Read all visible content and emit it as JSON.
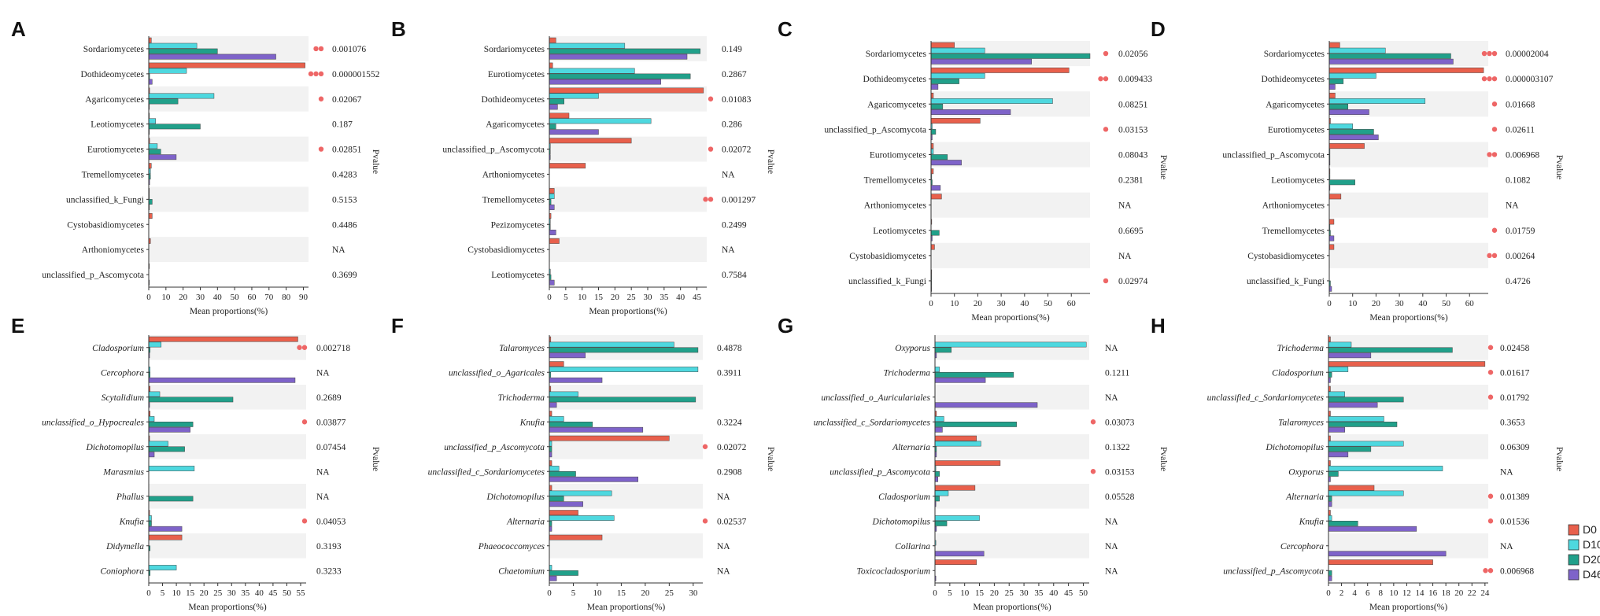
{
  "colors": {
    "D0": "#E8604C",
    "D100": "#4ED8DF",
    "D200": "#21A08A",
    "D460": "#7E63C9",
    "band": "#F2F2F2",
    "star": "#EE6666"
  },
  "legend": [
    "D0",
    "D100",
    "D200",
    "D460"
  ],
  "chart_data": [
    {
      "panel": "A",
      "type": "bar",
      "orientation": "horizontal",
      "italic": false,
      "xlabel": "Mean proportions(%)",
      "ylabel": "Pvalue",
      "xlim": [
        0,
        93
      ],
      "xticks": [
        0,
        10,
        20,
        30,
        40,
        50,
        60,
        70,
        80,
        90
      ],
      "categories": [
        "Sordariomycetes",
        "Dothideomycetes",
        "Agaricomycetes",
        "Leotiomycetes",
        "Eurotiomycetes",
        "Tremellomycetes",
        "unclassified_k_Fungi",
        "Cystobasidiomycetes",
        "Arthoniomycetes",
        "unclassified_p_Ascomycota"
      ],
      "pvalues": [
        "0.001076",
        "0.000001552",
        "0.02067",
        "0.187",
        "0.02851",
        "0.4283",
        "0.5153",
        "0.4486",
        "NA",
        "0.3699"
      ],
      "sig": [
        2,
        3,
        1,
        0,
        1,
        0,
        0,
        0,
        0,
        0
      ],
      "series": [
        {
          "name": "D0",
          "values": [
            1.5,
            91,
            0.5,
            0.3,
            0.5,
            1.5,
            0.3,
            2,
            1,
            0.2
          ]
        },
        {
          "name": "D100",
          "values": [
            28,
            22,
            38,
            4,
            5,
            1,
            0.3,
            0,
            0,
            0
          ]
        },
        {
          "name": "D200",
          "values": [
            40,
            0.5,
            17,
            30,
            7,
            1,
            2,
            0,
            0,
            0
          ]
        },
        {
          "name": "D460",
          "values": [
            74,
            2,
            0.3,
            0.3,
            16,
            0.5,
            0.3,
            0,
            0,
            0.3
          ]
        }
      ]
    },
    {
      "panel": "B",
      "type": "bar",
      "orientation": "horizontal",
      "italic": false,
      "xlabel": "Mean proportions(%)",
      "ylabel": "Pvalue",
      "xlim": [
        0,
        48
      ],
      "xticks": [
        0,
        5,
        10,
        15,
        20,
        25,
        30,
        35,
        40,
        45
      ],
      "categories": [
        "Sordariomycetes",
        "Eurotiomycetes",
        "Dothideomycetes",
        "Agaricomycetes",
        "unclassified_p_Ascomycota",
        "Arthoniomycetes",
        "Tremellomycetes",
        "Pezizomycetes",
        "Cystobasidiomycetes",
        "Leotiomycetes"
      ],
      "pvalues": [
        "0.149",
        "0.2867",
        "0.01083",
        "0.286",
        "0.02072",
        "NA",
        "0.001297",
        "0.2499",
        "NA",
        "0.7584"
      ],
      "sig": [
        0,
        0,
        1,
        0,
        1,
        0,
        2,
        0,
        0,
        0
      ],
      "series": [
        {
          "name": "D0",
          "values": [
            2,
            1,
            47,
            6,
            25,
            11,
            1.5,
            0.5,
            3,
            0
          ]
        },
        {
          "name": "D100",
          "values": [
            23,
            26,
            15,
            31,
            0.3,
            0,
            1.5,
            0.3,
            0,
            0.3
          ]
        },
        {
          "name": "D200",
          "values": [
            46,
            43,
            4.5,
            2,
            0.3,
            0,
            0.5,
            0.3,
            0,
            0.5
          ]
        },
        {
          "name": "D460",
          "values": [
            42,
            34,
            2.5,
            15,
            0.3,
            0,
            1.5,
            2,
            0,
            1.5
          ]
        }
      ]
    },
    {
      "panel": "C",
      "type": "bar",
      "orientation": "horizontal",
      "italic": false,
      "xlabel": "Mean proportions(%)",
      "ylabel": "Pvalue",
      "xlim": [
        0,
        68
      ],
      "xticks": [
        0,
        10,
        20,
        30,
        40,
        50,
        60
      ],
      "categories": [
        "Sordariomycetes",
        "Dothideomycetes",
        "Agaricomycetes",
        "unclassified_p_Ascomycota",
        "Eurotiomycetes",
        "Tremellomycetes",
        "Arthoniomycetes",
        "Leotiomycetes",
        "Cystobasidiomycetes",
        "unclassified_k_Fungi"
      ],
      "pvalues": [
        "0.02056",
        "0.009433",
        "0.08251",
        "0.03153",
        "0.08043",
        "0.2381",
        "NA",
        "0.6695",
        "NA",
        "0.02974"
      ],
      "sig": [
        1,
        2,
        0,
        1,
        0,
        0,
        0,
        0,
        0,
        1
      ],
      "series": [
        {
          "name": "D0",
          "values": [
            10,
            59,
            1,
            21,
            1,
            1,
            4.5,
            0.3,
            1.5,
            0.2
          ]
        },
        {
          "name": "D100",
          "values": [
            23,
            23,
            52,
            0.5,
            1,
            0.3,
            0,
            0,
            0,
            0.2
          ]
        },
        {
          "name": "D200",
          "values": [
            68,
            12,
            5,
            2,
            7,
            0.5,
            0,
            3.5,
            0,
            0.2
          ]
        },
        {
          "name": "D460",
          "values": [
            43,
            3,
            34,
            0.5,
            13,
            4,
            0,
            0.5,
            0,
            0.2
          ]
        }
      ]
    },
    {
      "panel": "D",
      "type": "bar",
      "orientation": "horizontal",
      "italic": false,
      "xlabel": "Mean proportions(%)",
      "ylabel": "Pvalue",
      "xlim": [
        0,
        68
      ],
      "xticks": [
        0,
        10,
        20,
        30,
        40,
        50,
        60
      ],
      "categories": [
        "Sordariomycetes",
        "Dothideomycetes",
        "Agaricomycetes",
        "Eurotiomycetes",
        "unclassified_p_Ascomycota",
        "Leotiomycetes",
        "Arthoniomycetes",
        "Tremellomycetes",
        "Cystobasidiomycetes",
        "unclassified_k_Fungi"
      ],
      "pvalues": [
        "0.00002004",
        "0.000003107",
        "0.01668",
        "0.02611",
        "0.006968",
        "0.1082",
        "NA",
        "0.01759",
        "0.00264",
        "0.4726"
      ],
      "sig": [
        3,
        3,
        1,
        1,
        2,
        0,
        0,
        1,
        2,
        0
      ],
      "series": [
        {
          "name": "D0",
          "values": [
            4.5,
            66,
            2.5,
            0.5,
            15,
            0.3,
            5,
            2,
            2,
            0
          ]
        },
        {
          "name": "D100",
          "values": [
            24,
            20,
            41,
            10,
            0.3,
            0.3,
            0,
            0.3,
            0,
            0
          ]
        },
        {
          "name": "D200",
          "values": [
            52,
            6,
            8,
            19,
            0.3,
            11,
            0,
            0.5,
            0,
            0.5
          ]
        },
        {
          "name": "D460",
          "values": [
            53,
            2.5,
            17,
            21,
            0.3,
            0.3,
            0,
            2,
            0,
            1
          ]
        }
      ]
    },
    {
      "panel": "E",
      "type": "bar",
      "orientation": "horizontal",
      "italic": true,
      "xlabel": "Mean proportions(%)",
      "ylabel": "Pvalue",
      "xlim": [
        0,
        57
      ],
      "xticks": [
        0,
        5,
        10,
        15,
        20,
        25,
        30,
        35,
        40,
        45,
        50,
        55
      ],
      "categories": [
        "Cladosporium",
        "Cercophora",
        "Scytalidium",
        "unclassified_o_Hypocreales",
        "Dichotomopilus",
        "Marasmius",
        "Phallus",
        "Knufia",
        "Didymella",
        "Coniophora"
      ],
      "pvalues": [
        "0.002718",
        "NA",
        "0.2689",
        "0.03877",
        "0.07454",
        "NA",
        "NA",
        "0.04053",
        "0.3193",
        "0.3233"
      ],
      "sig": [
        2,
        0,
        0,
        1,
        0,
        0,
        0,
        1,
        0,
        0
      ],
      "series": [
        {
          "name": "D0",
          "values": [
            54,
            0,
            0.5,
            0.5,
            0.3,
            0,
            0,
            0.3,
            12,
            0
          ]
        },
        {
          "name": "D100",
          "values": [
            4.5,
            0.5,
            4,
            2,
            7,
            16.5,
            0,
            1,
            0,
            10
          ]
        },
        {
          "name": "D200",
          "values": [
            0.5,
            0.5,
            30.5,
            16,
            13,
            0,
            16,
            1,
            0.5,
            0.5
          ]
        },
        {
          "name": "D460",
          "values": [
            0.3,
            53,
            0.3,
            15,
            2,
            0,
            0,
            12,
            0,
            0
          ]
        }
      ]
    },
    {
      "panel": "F",
      "type": "bar",
      "orientation": "horizontal",
      "italic": true,
      "xlabel": "Mean proportions(%)",
      "ylabel": "Pvalue",
      "xlim": [
        0,
        32
      ],
      "xticks": [
        0,
        5,
        10,
        15,
        20,
        25,
        30
      ],
      "categories": [
        "Talaromyces",
        "unclassified_o_Agaricales",
        "Trichoderma",
        "Knufia",
        "unclassified_p_Ascomycota",
        "unclassified_c_Sordariomycetes",
        "Dichotomopilus",
        "Alternaria",
        "Phaeococcomyces",
        "Chaetomium"
      ],
      "pvalues": [
        "0.4878",
        "0.3911",
        "0.3224",
        "0.02072",
        "0.2908",
        "NA",
        "0.02537",
        "NA",
        "NA",
        ""
      ],
      "pvalue_rows": [
        0,
        1,
        3,
        4,
        5,
        6,
        7,
        8,
        9
      ],
      "sig": [
        0,
        0,
        0,
        0,
        1,
        0,
        0,
        1,
        0,
        0
      ],
      "series": [
        {
          "name": "D0",
          "values": [
            0.3,
            3,
            0.3,
            0.5,
            25,
            0.5,
            0.5,
            6,
            11,
            0
          ]
        },
        {
          "name": "D100",
          "values": [
            26,
            31,
            6,
            3,
            0.5,
            2,
            13,
            13.5,
            0,
            0.5
          ]
        },
        {
          "name": "D200",
          "values": [
            31,
            0.3,
            30.5,
            9,
            0.5,
            5.5,
            3,
            0.5,
            0,
            6
          ]
        },
        {
          "name": "D460",
          "values": [
            7.5,
            11,
            1.5,
            19.5,
            0.5,
            18.5,
            7,
            0.5,
            0,
            1.5
          ]
        }
      ]
    },
    {
      "panel": "G",
      "type": "bar",
      "orientation": "horizontal",
      "italic": true,
      "xlabel": "Mean proportions(%)",
      "ylabel": "Pvalue",
      "xlim": [
        0,
        52
      ],
      "xticks": [
        0,
        5,
        10,
        15,
        20,
        25,
        30,
        35,
        40,
        45,
        50
      ],
      "categories": [
        "Oxyporus",
        "Trichoderma",
        "unclassified_o_Auriculariales",
        "unclassified_c_Sordariomycetes",
        "Alternaria",
        "unclassified_p_Ascomycota",
        "Cladosporium",
        "Dichotomopilus",
        "Collarina",
        "Toxicocladosporium"
      ],
      "pvalues": [
        "NA",
        "0.1211",
        "NA",
        "0.03073",
        "0.1322",
        "0.03153",
        "0.05528",
        "NA",
        "NA",
        "NA"
      ],
      "sig": [
        0,
        0,
        0,
        1,
        0,
        1,
        0,
        0,
        0,
        0
      ],
      "series": [
        {
          "name": "D0",
          "values": [
            0,
            0,
            0,
            0.5,
            14,
            22,
            13.5,
            0,
            0,
            14
          ]
        },
        {
          "name": "D100",
          "values": [
            51,
            1.5,
            0,
            3,
            15.5,
            0.3,
            4.5,
            15,
            0.3,
            0
          ]
        },
        {
          "name": "D200",
          "values": [
            5.5,
            26.5,
            0,
            27.5,
            0.5,
            1.5,
            1.5,
            4,
            0,
            0
          ]
        },
        {
          "name": "D460",
          "values": [
            0.5,
            17,
            34.5,
            2.5,
            0.5,
            1,
            0.3,
            0.5,
            16.5,
            0.3
          ]
        }
      ]
    },
    {
      "panel": "H",
      "type": "bar",
      "orientation": "horizontal",
      "italic": true,
      "xlabel": "Mean proportions(%)",
      "ylabel": "Pvalue",
      "xlim": [
        0,
        24.5
      ],
      "xticks": [
        0,
        2,
        4,
        6,
        8,
        10,
        12,
        14,
        16,
        18,
        20,
        22,
        24
      ],
      "categories": [
        "Trichoderma",
        "Cladosporium",
        "unclassified_c_Sordariomycetes",
        "Talaromyces",
        "Dichotomopilus",
        "Oxyporus",
        "Alternaria",
        "Knufia",
        "Cercophora",
        "unclassified_p_Ascomycota"
      ],
      "pvalues": [
        "0.02458",
        "0.01617",
        "0.01792",
        "0.3653",
        "0.06309",
        "NA",
        "0.01389",
        "0.01536",
        "NA",
        "0.006968"
      ],
      "sig": [
        1,
        1,
        1,
        0,
        0,
        0,
        1,
        1,
        0,
        2
      ],
      "series": [
        {
          "name": "D0",
          "values": [
            0.3,
            24,
            0.3,
            0.3,
            0.3,
            0.3,
            7,
            0.3,
            0,
            16
          ]
        },
        {
          "name": "D100",
          "values": [
            3.5,
            3,
            2.5,
            8.5,
            11.5,
            17.5,
            11.5,
            0.5,
            0,
            0
          ]
        },
        {
          "name": "D200",
          "values": [
            19,
            0.5,
            11.5,
            10.5,
            6.5,
            1.5,
            0.5,
            4.5,
            0,
            0.5
          ]
        },
        {
          "name": "D460",
          "values": [
            6.5,
            0.3,
            7.5,
            2.5,
            3,
            0.3,
            0.5,
            13.5,
            18,
            0.5
          ]
        }
      ]
    }
  ]
}
